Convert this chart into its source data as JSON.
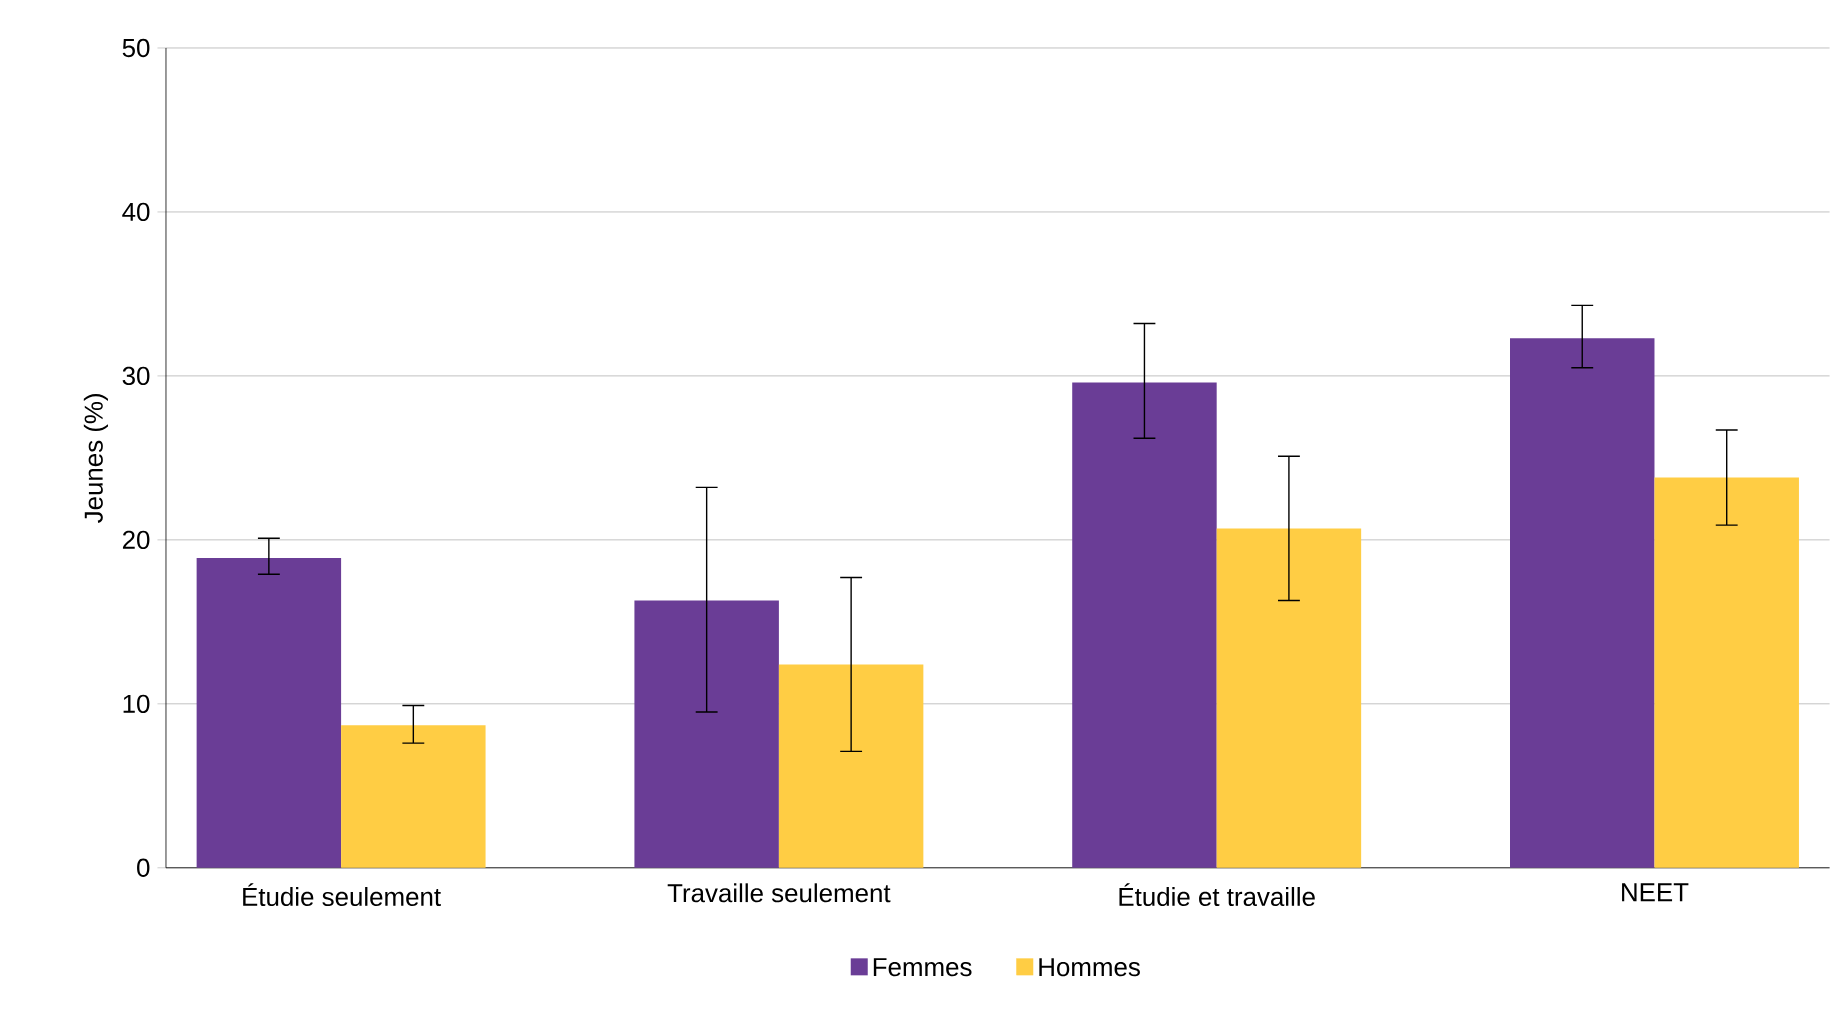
{
  "chart_data": {
    "type": "bar",
    "ylabel": "Jeunes (%)",
    "categories": [
      "Étudie seulement",
      "Travaille seulement",
      "Étudie et travaille",
      "NEET"
    ],
    "series": [
      {
        "name": "Femmes",
        "color": "#6a3d96",
        "values": [
          18.9,
          16.3,
          29.6,
          32.3
        ],
        "errors": [
          [
            17.9,
            20.1
          ],
          [
            9.5,
            23.2
          ],
          [
            26.2,
            33.2
          ],
          [
            30.5,
            34.3
          ]
        ]
      },
      {
        "name": "Hommes",
        "color": "#ffcd44",
        "values": [
          8.7,
          12.4,
          20.7,
          23.8
        ],
        "errors": [
          [
            7.6,
            9.9
          ],
          [
            7.1,
            17.7
          ],
          [
            16.3,
            25.1
          ],
          [
            20.9,
            26.7
          ]
        ]
      }
    ],
    "ylim": [
      0,
      50
    ],
    "yticks": [
      0,
      10,
      20,
      30,
      40,
      50
    ],
    "grid": "y",
    "legend": "bottom"
  }
}
